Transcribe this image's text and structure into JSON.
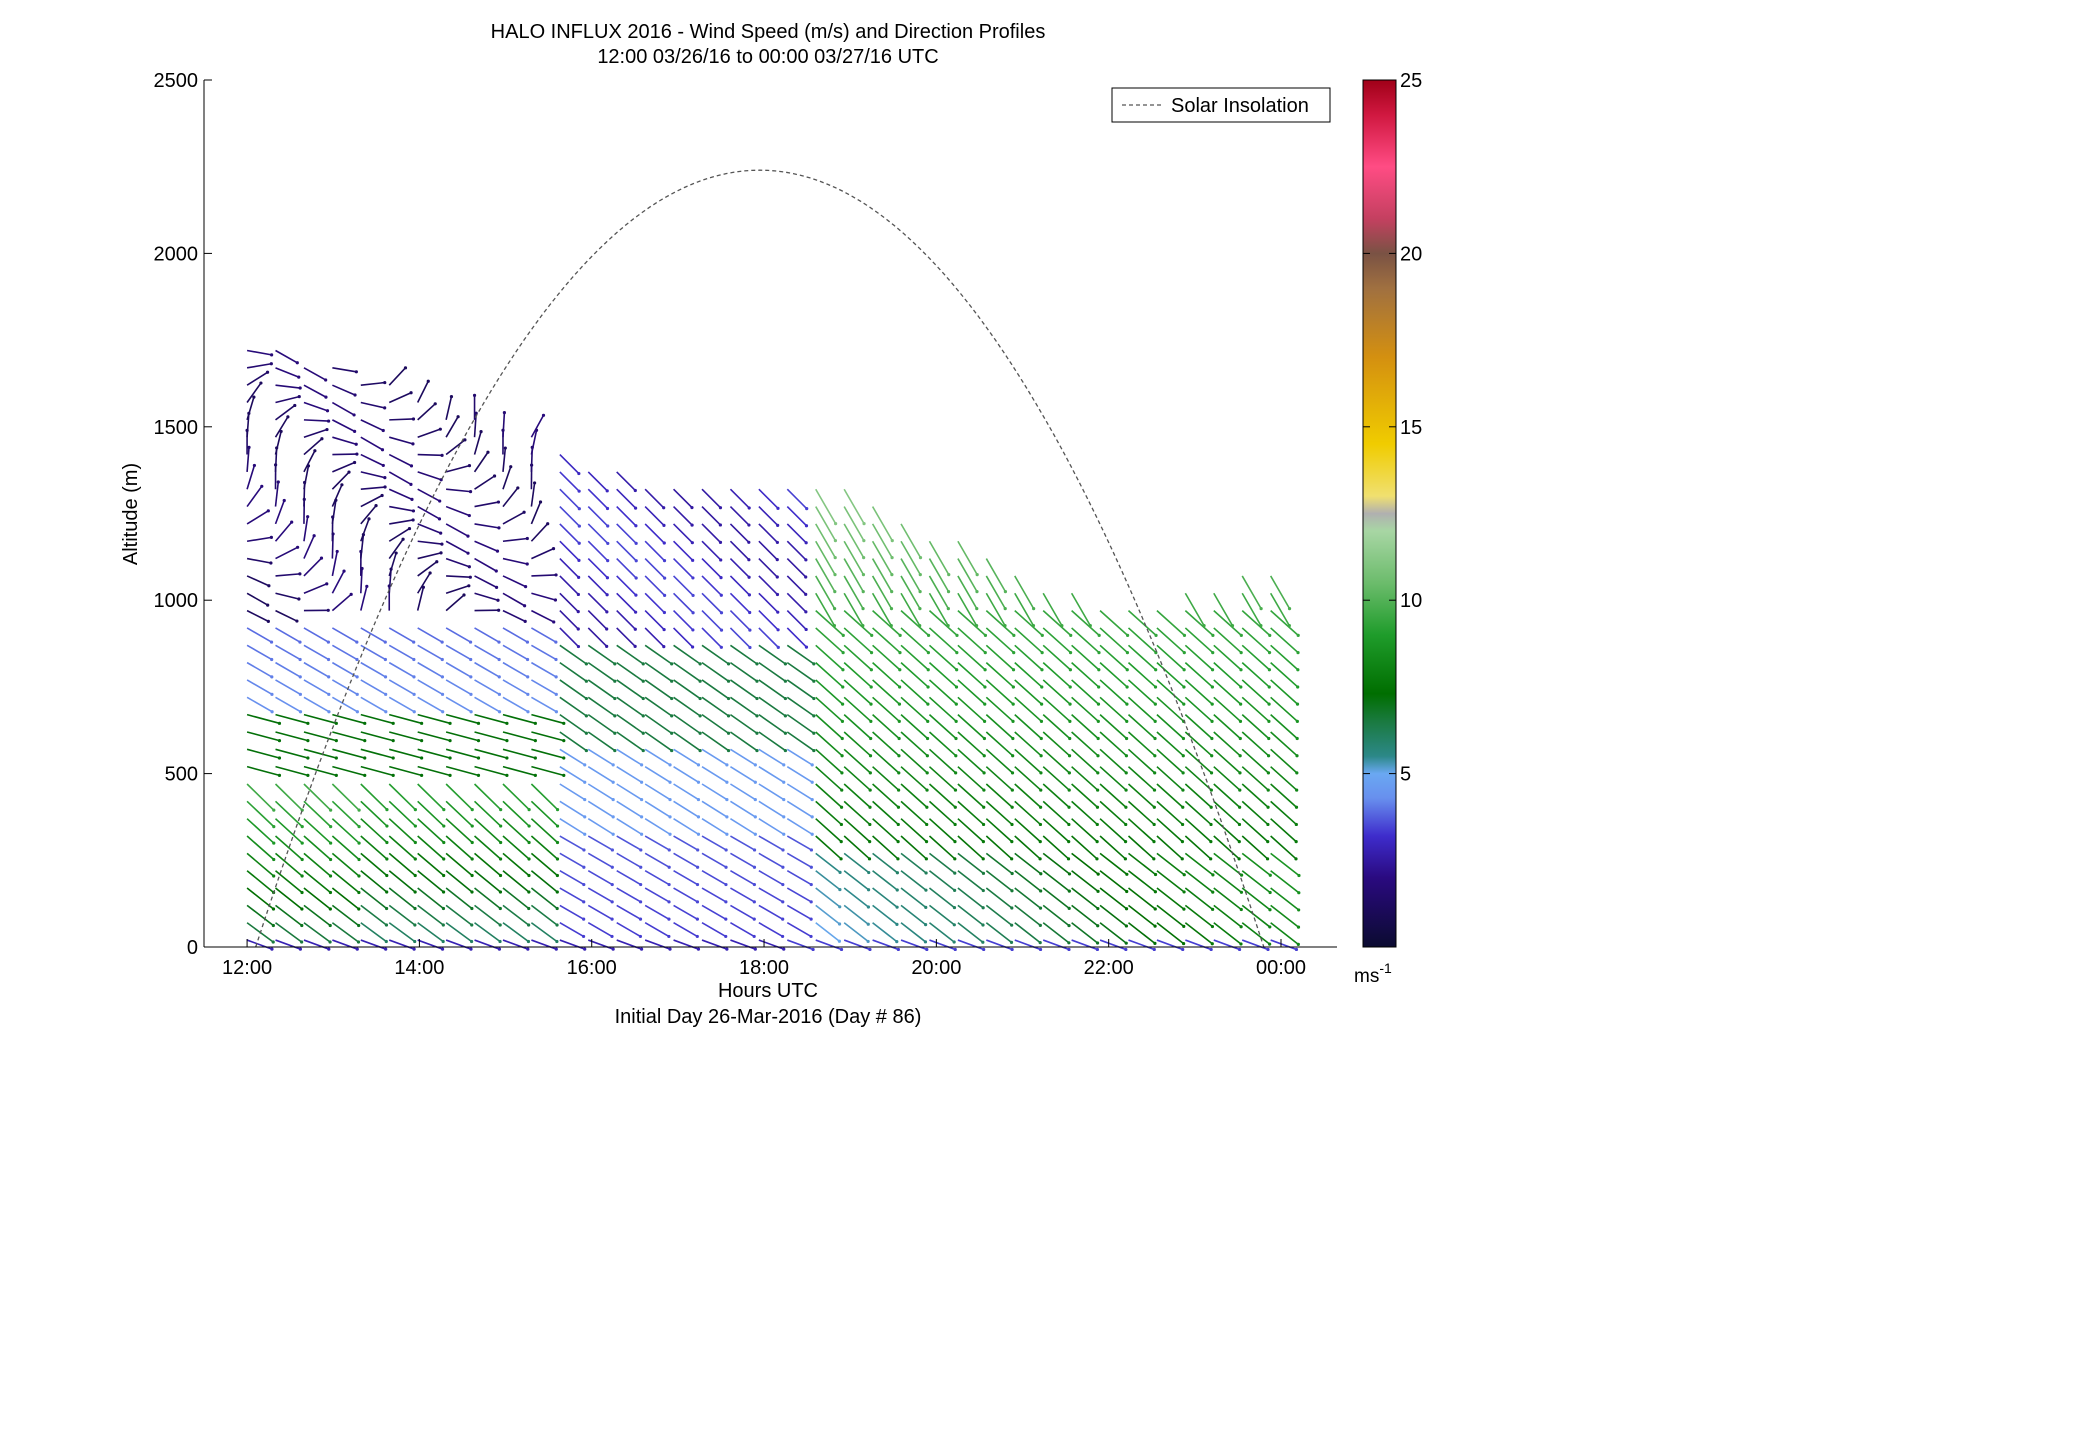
{
  "chart_data": {
    "type": "wind-barb-profile",
    "title": "HALO INFLUX 2016 - Wind Speed (m/s) and Direction Profiles",
    "subtitle": "12:00 03/26/16 to 00:00 03/27/16  UTC",
    "xlabel": "Hours UTC",
    "xlabel2": "Initial Day 26-Mar-2016 (Day # 86)",
    "ylabel": "Altitude (m)",
    "xlim": [
      11.5,
      24.65
    ],
    "ylim": [
      0,
      2500
    ],
    "x_ticks": [
      {
        "value": 12,
        "label": "12:00"
      },
      {
        "value": 14,
        "label": "14:00"
      },
      {
        "value": 16,
        "label": "16:00"
      },
      {
        "value": 18,
        "label": "18:00"
      },
      {
        "value": 20,
        "label": "20:00"
      },
      {
        "value": 22,
        "label": "22:00"
      },
      {
        "value": 24,
        "label": "00:00"
      }
    ],
    "y_ticks": [
      {
        "value": 0,
        "label": "0"
      },
      {
        "value": 500,
        "label": "500"
      },
      {
        "value": 1000,
        "label": "1000"
      },
      {
        "value": 1500,
        "label": "1500"
      },
      {
        "value": 2000,
        "label": "2000"
      },
      {
        "value": 2500,
        "label": "2500"
      }
    ],
    "legend": {
      "label": "Solar Insolation",
      "placement": "top-right",
      "line_color": "#555555"
    },
    "solar_insolation": {
      "start_hour": 12.1,
      "end_hour": 23.8,
      "peak_hour": 17.95,
      "peak_altitude": 2240
    },
    "colorbar": {
      "range": [
        0,
        25
      ],
      "unit_label": "ms",
      "unit_exponent": "-1",
      "ticks": [
        {
          "value": 5,
          "label": "5"
        },
        {
          "value": 10,
          "label": "10"
        },
        {
          "value": 15,
          "label": "15"
        },
        {
          "value": 20,
          "label": "20"
        },
        {
          "value": 25,
          "label": "25"
        }
      ],
      "stops": [
        {
          "value": 0,
          "color": "#0b0b30"
        },
        {
          "value": 2,
          "color": "#2a0a80"
        },
        {
          "value": 3.2,
          "color": "#3e2ccc"
        },
        {
          "value": 4.3,
          "color": "#6890ee"
        },
        {
          "value": 5,
          "color": "#6aa8f2"
        },
        {
          "value": 5.5,
          "color": "#2c8888"
        },
        {
          "value": 6.5,
          "color": "#1a7a40"
        },
        {
          "value": 7.3,
          "color": "#006e00"
        },
        {
          "value": 9,
          "color": "#1f9c2b"
        },
        {
          "value": 10.5,
          "color": "#6cbc6c"
        },
        {
          "value": 12,
          "color": "#a8d6a4"
        },
        {
          "value": 12.5,
          "color": "#b0b0b0"
        },
        {
          "value": 13,
          "color": "#f0e070"
        },
        {
          "value": 14.5,
          "color": "#f0cc00"
        },
        {
          "value": 17,
          "color": "#d49010"
        },
        {
          "value": 19,
          "color": "#a07040"
        },
        {
          "value": 20,
          "color": "#7a5244"
        },
        {
          "value": 21,
          "color": "#c44060"
        },
        {
          "value": 22.5,
          "color": "#ff4c84"
        },
        {
          "value": 24,
          "color": "#d01840"
        },
        {
          "value": 25,
          "color": "#a00018"
        }
      ]
    },
    "wind_field": {
      "time_start": 12.0,
      "time_end": 24.0,
      "time_step": 0.33,
      "altitude_step": 50,
      "description_zones": [
        {
          "layer": "near-surface",
          "altitude": [
            0,
            60
          ],
          "speed_ms": 2.8,
          "direction_deg": 290
        },
        {
          "layer": "boundary-layer-midday",
          "time": [
            12,
            15.5
          ],
          "altitude": [
            60,
            900
          ],
          "speed_ms": 7.5,
          "direction_deg": 300
        },
        {
          "layer": "boundary-layer-afternoon",
          "time": [
            15.5,
            18.5
          ],
          "altitude": [
            60,
            900
          ],
          "speed_ms": 4.5,
          "direction_deg": 300
        },
        {
          "layer": "evening",
          "time": [
            18.5,
            24
          ],
          "altitude": [
            60,
            1300
          ],
          "speed_ms": 8.5,
          "direction_deg": 310
        },
        {
          "layer": "aloft-morning",
          "time": [
            12,
            15
          ],
          "altitude": [
            900,
            1760
          ],
          "speed_ms": 2.0,
          "direction_deg": 270
        }
      ]
    }
  }
}
